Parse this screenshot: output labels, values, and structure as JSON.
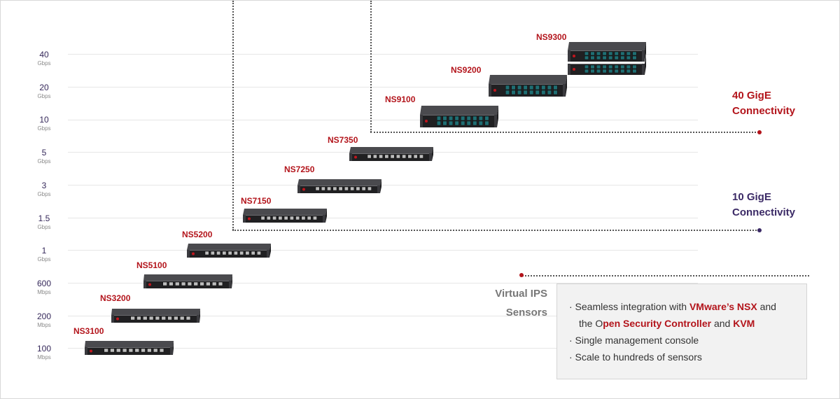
{
  "y_axis": {
    "ticks": [
      {
        "value": "40",
        "unit": "Gbps"
      },
      {
        "value": "20",
        "unit": "Gbps"
      },
      {
        "value": "10",
        "unit": "Gbps"
      },
      {
        "value": "5",
        "unit": "Gbps"
      },
      {
        "value": "3",
        "unit": "Gbps"
      },
      {
        "value": "1.5",
        "unit": "Gbps"
      },
      {
        "value": "1",
        "unit": "Gbps"
      },
      {
        "value": "600",
        "unit": "Mbps"
      },
      {
        "value": "200",
        "unit": "Mbps"
      },
      {
        "value": "100",
        "unit": "Mbps"
      }
    ]
  },
  "products": [
    {
      "name": "NS3100",
      "units": 1
    },
    {
      "name": "NS3200",
      "units": 1
    },
    {
      "name": "NS5100",
      "units": 1
    },
    {
      "name": "NS5200",
      "units": 1
    },
    {
      "name": "NS7150",
      "units": 1
    },
    {
      "name": "NS7250",
      "units": 1
    },
    {
      "name": "NS7350",
      "units": 1
    },
    {
      "name": "NS9100",
      "units": 2
    },
    {
      "name": "NS9200",
      "units": 2
    },
    {
      "name": "NS9300",
      "units": 4
    }
  ],
  "connectivity": {
    "g40_line1": "40 GigE",
    "g40_line2": "Connectivity",
    "g10_line1": "10 GigE",
    "g10_line2": "Connectivity"
  },
  "virtual": {
    "line1": "Virtual IPS",
    "line2": "Sensors"
  },
  "features": {
    "item1_a": "· Seamless integration with ",
    "item1_b": "VMware’s NSX",
    "item1_c": " and",
    "item1_d": "the O",
    "item1_e": "pen Security Controller",
    "item1_f": " and ",
    "item1_g": "KVM",
    "item2": "· Single management console",
    "item3": "· Scale to hundreds of sensors"
  },
  "colors": {
    "accent_red": "#b3141b",
    "accent_purple": "#3b2a66"
  }
}
